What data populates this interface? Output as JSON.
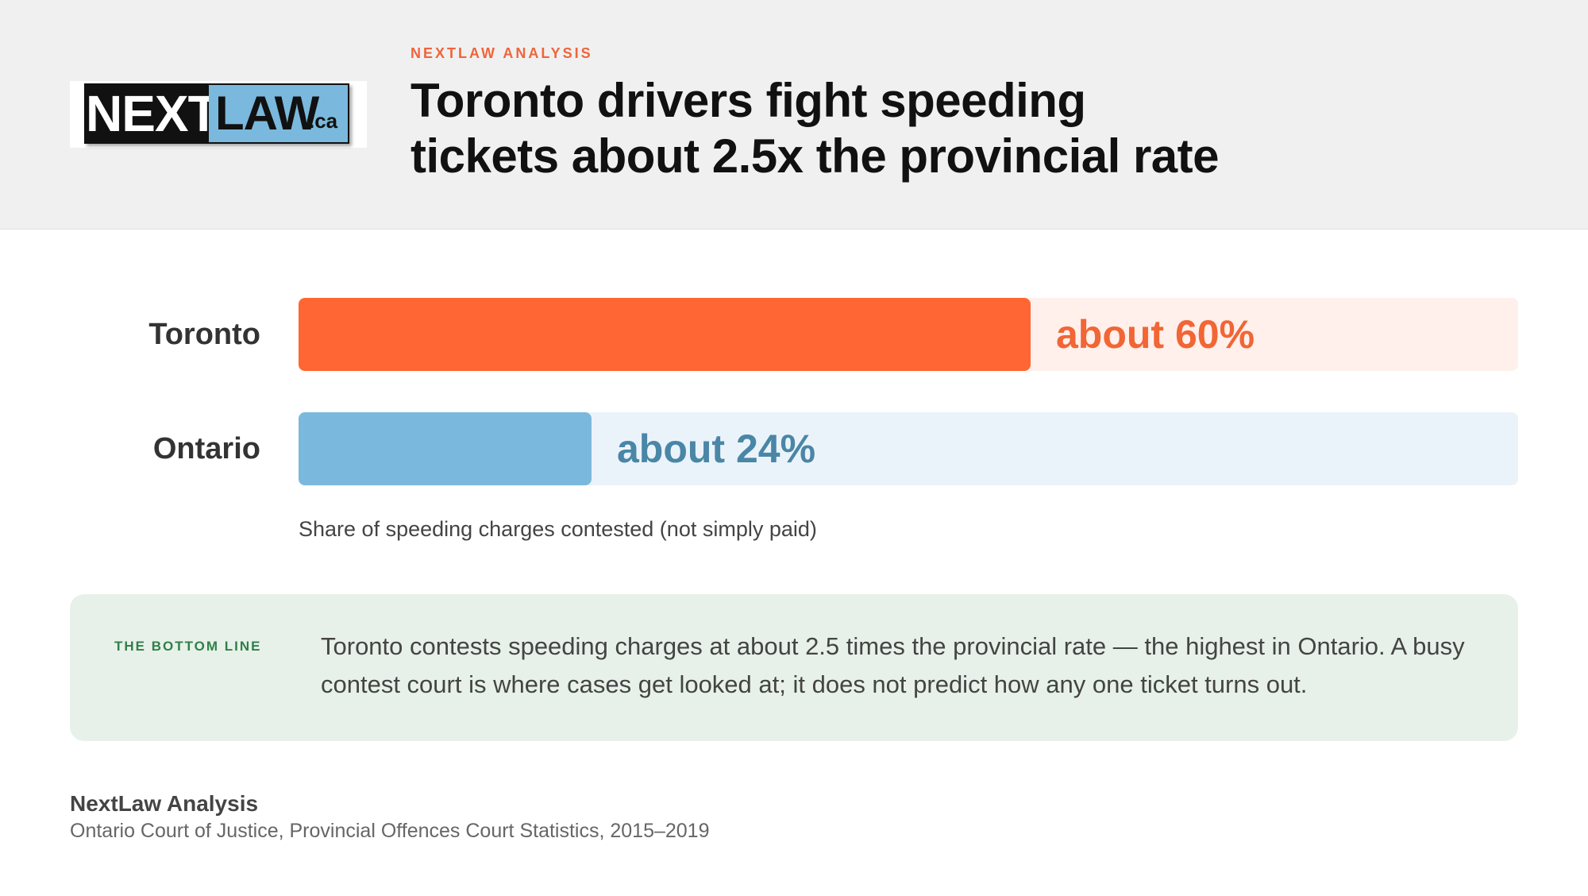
{
  "header": {
    "kicker": "NEXTLAW ANALYSIS",
    "title_line1": "Toronto drivers fight speeding",
    "title_line2": "tickets about 2.5x the provincial rate",
    "logo": {
      "part1": "NEXT",
      "part2": "LAW",
      "suffix": ".ca"
    }
  },
  "colors": {
    "toronto_bar": "#ff6633",
    "toronto_track": "#fff0eb",
    "toronto_label": "#f26535",
    "ontario_bar": "#7ab9dd",
    "ontario_track": "#ebf3fa",
    "ontario_label": "#4a86a6",
    "header_bg": "#f0f0f0",
    "bottom_box_bg": "#e7f1e9",
    "bottom_label": "#2f8047"
  },
  "chart_data": {
    "type": "bar",
    "orientation": "horizontal",
    "categories": [
      "Toronto",
      "Ontario"
    ],
    "values": [
      60,
      24
    ],
    "value_labels": [
      "about 60%",
      "about 24%"
    ],
    "unit": "%",
    "xlim": [
      0,
      100
    ],
    "xlabel": "Share of speeding charges contested (not simply paid)",
    "grid": false
  },
  "bottom_line": {
    "label": "THE BOTTOM LINE",
    "text": "Toronto contests speeding charges at about 2.5 times the provincial rate — the highest in Ontario. A busy contest court is where cases get looked at; it does not predict how any one ticket turns out."
  },
  "source": {
    "title": "NextLaw Analysis",
    "text": "Ontario Court of Justice, Provincial Offences Court Statistics, 2015–2019"
  }
}
